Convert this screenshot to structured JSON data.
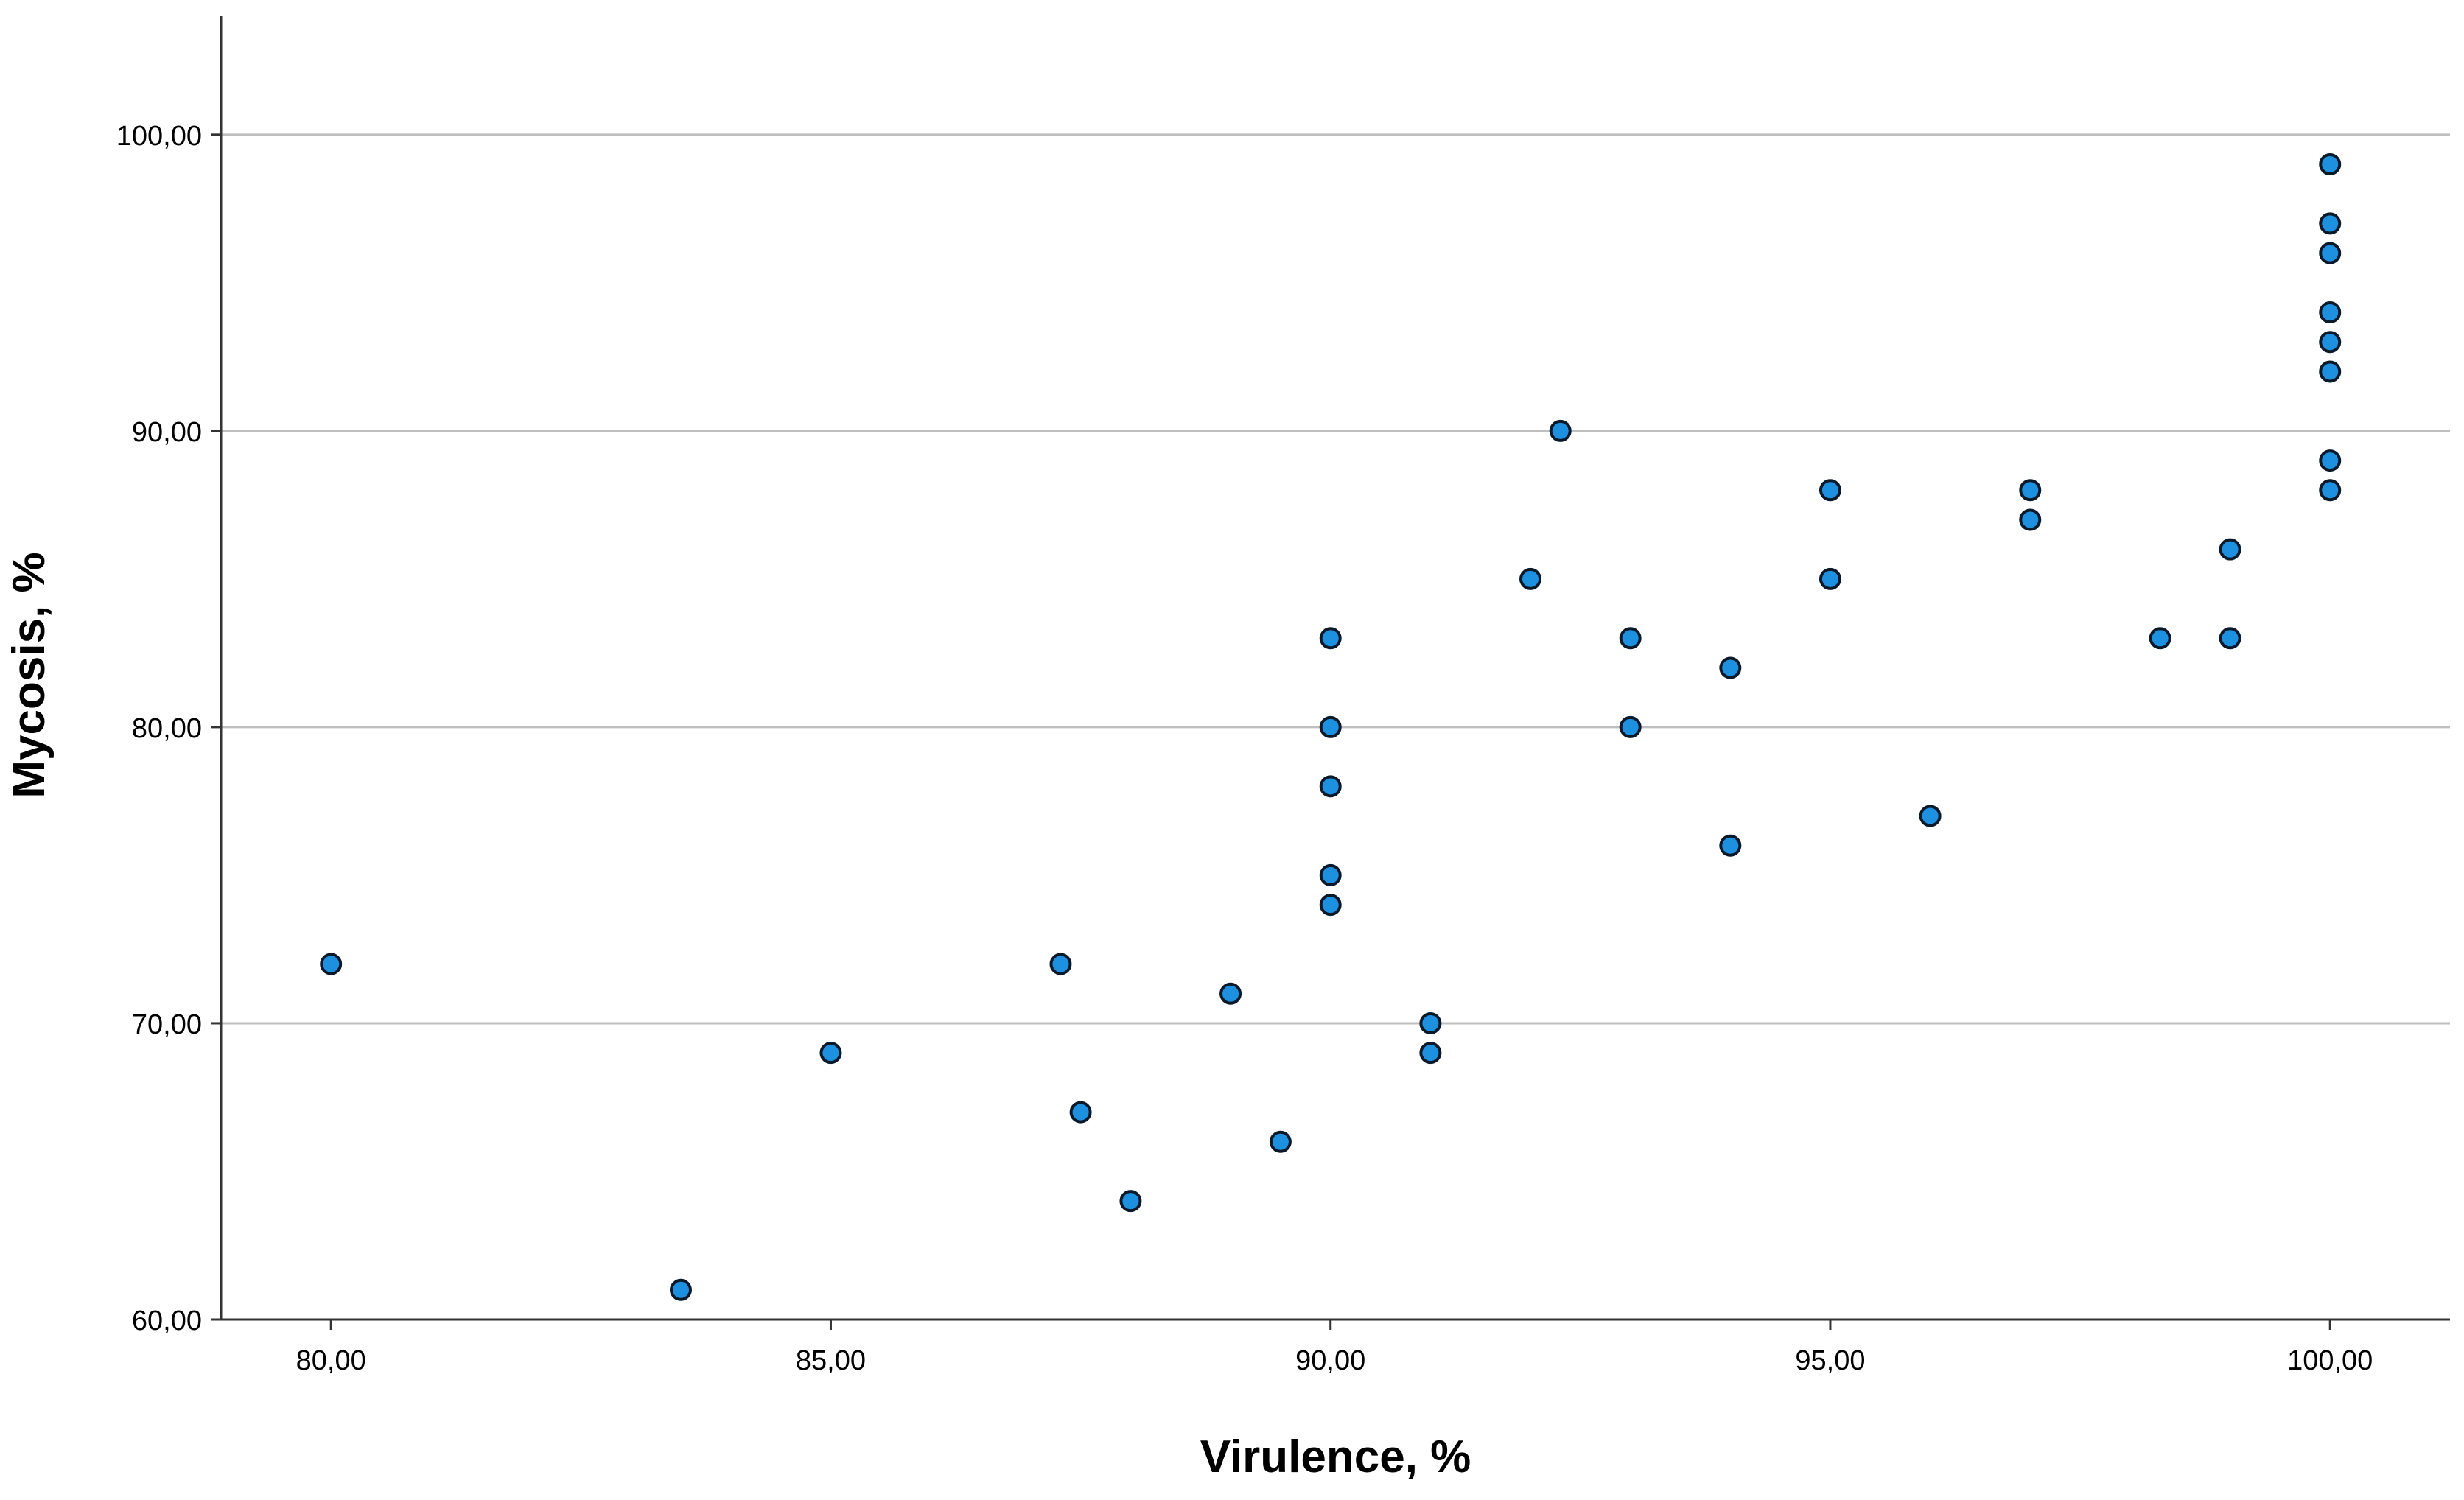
{
  "chart_data": {
    "type": "scatter",
    "title": "",
    "xlabel": "Virulence, %",
    "ylabel": "Mycosis, %",
    "xlim": [
      78.9,
      101.2
    ],
    "ylim": [
      60,
      104
    ],
    "x_ticks": [
      "80,00",
      "85,00",
      "90,00",
      "95,00",
      "100,00"
    ],
    "x_tick_values": [
      80,
      85,
      90,
      95,
      100
    ],
    "y_ticks": [
      "60,00",
      "70,00",
      "80,00",
      "90,00",
      "100,00"
    ],
    "y_tick_values": [
      60,
      70,
      80,
      90,
      100
    ],
    "grid": "horizontal",
    "marker_fill": "#1e90e0",
    "marker_stroke": "#0a1a2a",
    "grid_color": "#bfbfbf",
    "points": [
      {
        "x": 80,
        "y": 72
      },
      {
        "x": 83.5,
        "y": 61
      },
      {
        "x": 85,
        "y": 69
      },
      {
        "x": 87.3,
        "y": 72
      },
      {
        "x": 87.5,
        "y": 67
      },
      {
        "x": 88,
        "y": 64
      },
      {
        "x": 89,
        "y": 71
      },
      {
        "x": 89.5,
        "y": 66
      },
      {
        "x": 90,
        "y": 83
      },
      {
        "x": 90,
        "y": 80
      },
      {
        "x": 90,
        "y": 78
      },
      {
        "x": 90,
        "y": 75
      },
      {
        "x": 90,
        "y": 74
      },
      {
        "x": 91,
        "y": 70
      },
      {
        "x": 91,
        "y": 69
      },
      {
        "x": 92,
        "y": 85
      },
      {
        "x": 92.3,
        "y": 90
      },
      {
        "x": 93,
        "y": 83
      },
      {
        "x": 93,
        "y": 80
      },
      {
        "x": 94,
        "y": 82
      },
      {
        "x": 94,
        "y": 76
      },
      {
        "x": 95,
        "y": 88
      },
      {
        "x": 95,
        "y": 85
      },
      {
        "x": 96,
        "y": 77
      },
      {
        "x": 97,
        "y": 88
      },
      {
        "x": 97,
        "y": 87
      },
      {
        "x": 98.3,
        "y": 83
      },
      {
        "x": 99,
        "y": 86
      },
      {
        "x": 99,
        "y": 83
      },
      {
        "x": 100,
        "y": 99
      },
      {
        "x": 100,
        "y": 97
      },
      {
        "x": 100,
        "y": 96
      },
      {
        "x": 100,
        "y": 94
      },
      {
        "x": 100,
        "y": 93
      },
      {
        "x": 100,
        "y": 92
      },
      {
        "x": 100,
        "y": 89
      },
      {
        "x": 100,
        "y": 88
      }
    ]
  }
}
